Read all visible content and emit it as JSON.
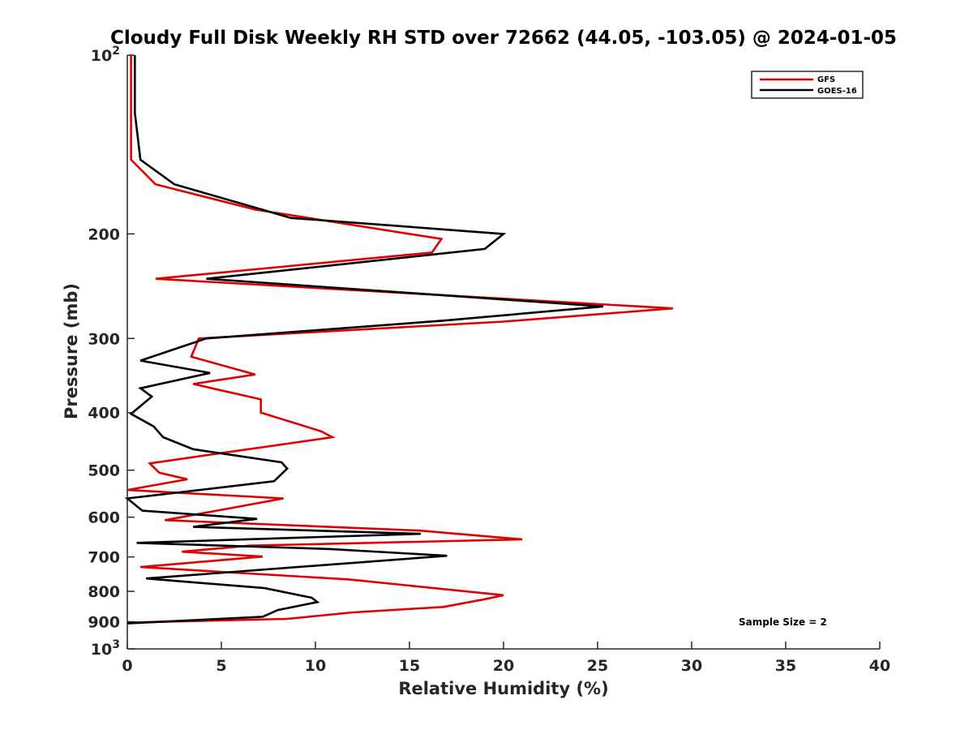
{
  "chart_data": {
    "type": "line",
    "title": "Cloudy Full Disk Weekly RH STD over 72662 (44.05, -103.05) @ 2024-01-05",
    "xlabel": "Relative Humidity (%)",
    "ylabel": "Pressure (mb)",
    "xlim": [
      0,
      40
    ],
    "ylim": [
      100,
      1000
    ],
    "y_scale": "log",
    "y_reversed": true,
    "grid": false,
    "legend_position": "top-right",
    "x_ticks": [
      "0",
      "5",
      "10",
      "15",
      "20",
      "25",
      "30",
      "35",
      "40"
    ],
    "y_ticks": [
      {
        "value": 100,
        "base": "10",
        "exp": "2"
      },
      {
        "value": 200,
        "label": "200"
      },
      {
        "value": 300,
        "label": "300"
      },
      {
        "value": 400,
        "label": "400"
      },
      {
        "value": 500,
        "label": "500"
      },
      {
        "value": 600,
        "label": "600"
      },
      {
        "value": 700,
        "label": "700"
      },
      {
        "value": 800,
        "label": "800"
      },
      {
        "value": 900,
        "label": "900"
      },
      {
        "value": 1000,
        "base": "10",
        "exp": "3"
      }
    ],
    "annotation": "Sample Size = 2",
    "series": [
      {
        "name": "GFS",
        "color": "#e00000",
        "points": [
          [
            0.2,
            100
          ],
          [
            0.2,
            125
          ],
          [
            0.2,
            150
          ],
          [
            1.5,
            165
          ],
          [
            6.8,
            182
          ],
          [
            16.7,
            204
          ],
          [
            16.2,
            215
          ],
          [
            1.5,
            238
          ],
          [
            29.0,
            267
          ],
          [
            20.0,
            281
          ],
          [
            3.8,
            300
          ],
          [
            3.4,
            322
          ],
          [
            6.8,
            345
          ],
          [
            3.5,
            358
          ],
          [
            7.1,
            380
          ],
          [
            7.1,
            400
          ],
          [
            10.3,
            430
          ],
          [
            10.9,
            440
          ],
          [
            1.2,
            487
          ],
          [
            1.7,
            505
          ],
          [
            3.2,
            518
          ],
          [
            0.0,
            540
          ],
          [
            8.3,
            558
          ],
          [
            2.0,
            607
          ],
          [
            15.5,
            632
          ],
          [
            21.0,
            654
          ],
          [
            6.5,
            670
          ],
          [
            2.9,
            686
          ],
          [
            7.2,
            699
          ],
          [
            0.7,
            728
          ],
          [
            11.8,
            764
          ],
          [
            20.0,
            812
          ],
          [
            19.0,
            825
          ],
          [
            16.8,
            850
          ],
          [
            12.0,
            868
          ],
          [
            8.5,
            890
          ],
          [
            0.0,
            903
          ]
        ]
      },
      {
        "name": "GOES-16",
        "color": "#000000",
        "points": [
          [
            0.4,
            100
          ],
          [
            0.4,
            125
          ],
          [
            0.7,
            150
          ],
          [
            2.5,
            165
          ],
          [
            8.7,
            188
          ],
          [
            20.0,
            200
          ],
          [
            19.0,
            212
          ],
          [
            4.2,
            238
          ],
          [
            25.3,
            265
          ],
          [
            16.8,
            280
          ],
          [
            4.2,
            300
          ],
          [
            0.7,
            327
          ],
          [
            4.4,
            343
          ],
          [
            0.7,
            364
          ],
          [
            1.3,
            376
          ],
          [
            0.2,
            402
          ],
          [
            1.4,
            422
          ],
          [
            1.9,
            440
          ],
          [
            3.5,
            461
          ],
          [
            8.2,
            485
          ],
          [
            8.5,
            497
          ],
          [
            7.8,
            522
          ],
          [
            0.0,
            558
          ],
          [
            0.8,
            585
          ],
          [
            6.9,
            604
          ],
          [
            3.5,
            623
          ],
          [
            15.6,
            640
          ],
          [
            0.5,
            663
          ],
          [
            10.8,
            679
          ],
          [
            17.0,
            697
          ],
          [
            1.0,
            761
          ],
          [
            7.3,
            790
          ],
          [
            9.8,
            820
          ],
          [
            10.1,
            834
          ],
          [
            8.0,
            860
          ],
          [
            7.2,
            883
          ],
          [
            0.0,
            906
          ]
        ]
      }
    ]
  }
}
